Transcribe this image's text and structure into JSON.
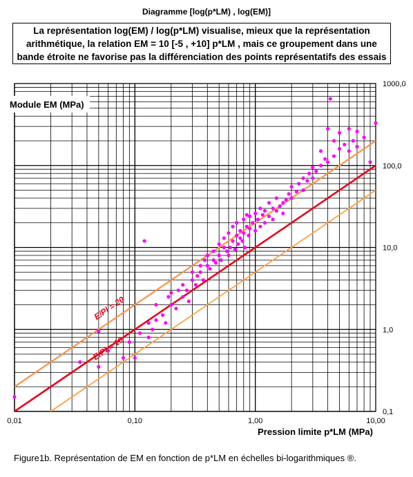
{
  "header": {
    "diagram_title": "Diagramme [log(p*LM) , log(EM)]"
  },
  "note": {
    "line1": "La représentation log(EM) / log(p*LM) visualise, mieux que la représentation",
    "line2": "arithmétique, la relation  EM = 10 [-5 , +10] p*LM , mais ce groupement dans une",
    "line3": "bande étroite ne favorise pas la différenciation des points représentatifs des essais"
  },
  "caption": "Figure1b. Représentation de EM en fonction de p*LM en échelles bi-logarithmiques ®.",
  "chart_data": {
    "type": "scatter",
    "xscale": "log",
    "yscale": "log",
    "xlim": [
      0.01,
      10
    ],
    "ylim": [
      0.1,
      1000
    ],
    "xlabel": "Pression limite p*LM (MPa)",
    "ylabel": "Module EM (MPa)",
    "x_ticks": [
      "0,01",
      "0,10",
      "1,00",
      "10,00"
    ],
    "y_ticks": [
      "0,1",
      "1,0",
      "10,0",
      "100,0",
      "1000,0"
    ],
    "grid": true,
    "colors": {
      "points": "#ff00ff",
      "main_line": "#e8001c",
      "band_lines": "#ffa040"
    },
    "lines": [
      {
        "label": "E/Pl = 10",
        "ratio": 10,
        "color": "#e8001c"
      },
      {
        "label": "E/Pl = 20",
        "ratio": 20,
        "color": "#e8001c"
      },
      {
        "label": "",
        "ratio": 5,
        "color": "#ffa040"
      },
      {
        "label": "",
        "ratio": 20,
        "color": "#ffa040"
      }
    ],
    "series": [
      {
        "x": [
          0.01,
          0.035,
          0.05,
          0.05,
          0.06,
          0.08,
          0.09,
          0.1,
          0.11,
          0.12,
          0.13,
          0.13,
          0.14,
          0.15,
          0.15,
          0.17,
          0.18,
          0.19,
          0.2,
          0.2,
          0.22,
          0.23,
          0.25,
          0.25,
          0.27,
          0.28,
          0.3,
          0.3,
          0.32,
          0.33,
          0.35,
          0.35,
          0.37,
          0.38,
          0.4,
          0.4,
          0.42,
          0.45,
          0.45,
          0.47,
          0.5,
          0.5,
          0.52,
          0.55,
          0.55,
          0.58,
          0.6,
          0.6,
          0.62,
          0.65,
          0.65,
          0.68,
          0.7,
          0.7,
          0.72,
          0.75,
          0.75,
          0.78,
          0.8,
          0.8,
          0.82,
          0.85,
          0.85,
          0.88,
          0.9,
          0.9,
          0.95,
          1.0,
          1.0,
          1.05,
          1.1,
          1.1,
          1.15,
          1.2,
          1.2,
          1.3,
          1.3,
          1.4,
          1.4,
          1.5,
          1.5,
          1.6,
          1.7,
          1.7,
          1.8,
          1.9,
          2.0,
          2.0,
          2.2,
          2.3,
          2.5,
          2.5,
          2.7,
          2.8,
          3.0,
          3.0,
          3.2,
          3.5,
          3.5,
          3.8,
          4.0,
          4.0,
          4.2,
          4.5,
          4.5,
          5.0,
          5.0,
          5.5,
          6.0,
          6.0,
          6.5,
          7.0,
          7.0,
          8.0,
          9.0,
          10.0
        ],
        "y": [
          0.15,
          0.4,
          0.35,
          0.95,
          0.55,
          0.45,
          0.7,
          0.45,
          0.9,
          12.0,
          0.8,
          1.2,
          1.0,
          1.3,
          2.0,
          1.5,
          1.2,
          2.5,
          2.0,
          2.8,
          1.8,
          3.0,
          2.5,
          3.5,
          3.0,
          2.2,
          4.0,
          5.0,
          3.5,
          4.5,
          5.0,
          6.0,
          4.0,
          7.0,
          6.0,
          8.0,
          5.5,
          7.0,
          9.0,
          6.5,
          8.0,
          11.0,
          7.0,
          10.0,
          13.0,
          9.0,
          8.0,
          15.0,
          10.0,
          12.0,
          18.0,
          9.5,
          14.0,
          20.0,
          11.0,
          13.0,
          16.0,
          12.0,
          15.0,
          22.0,
          10.0,
          18.0,
          25.0,
          14.0,
          17.0,
          24.0,
          20.0,
          16.0,
          26.0,
          22.0,
          18.0,
          30.0,
          25.0,
          20.0,
          28.0,
          24.0,
          35.0,
          30.0,
          22.0,
          28.0,
          40.0,
          32.0,
          35.0,
          26.0,
          38.0,
          45.0,
          40.0,
          55.0,
          48.0,
          60.0,
          50.0,
          70.0,
          65.0,
          80.0,
          70.0,
          95.0,
          85.0,
          100.0,
          150.0,
          120.0,
          110.0,
          280.0,
          650.0,
          130.0,
          200.0,
          160.0,
          250.0,
          180.0,
          150.0,
          280.0,
          200.0,
          170.0,
          260.0,
          220.0,
          110.0,
          330.0
        ]
      }
    ]
  }
}
